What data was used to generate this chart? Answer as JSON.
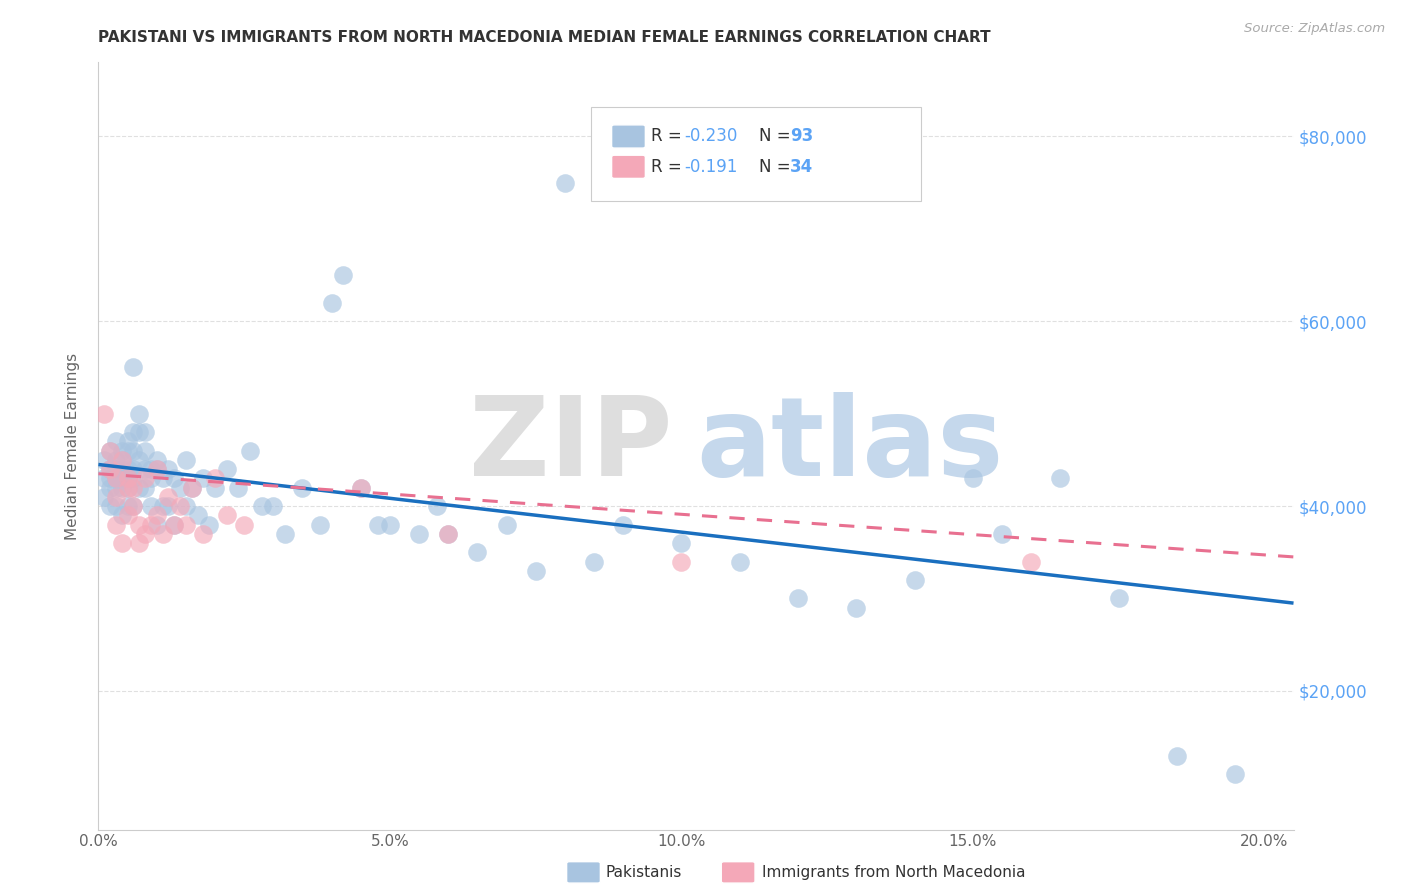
{
  "title": "PAKISTANI VS IMMIGRANTS FROM NORTH MACEDONIA MEDIAN FEMALE EARNINGS CORRELATION CHART",
  "source": "Source: ZipAtlas.com",
  "xlabel_ticks": [
    "0.0%",
    "5.0%",
    "10.0%",
    "15.0%",
    "20.0%"
  ],
  "xlabel_tick_vals": [
    0.0,
    0.05,
    0.1,
    0.15,
    0.2
  ],
  "ylabel": "Median Female Earnings",
  "ylabel_ticks": [
    "$80,000",
    "$60,000",
    "$40,000",
    "$20,000"
  ],
  "ylabel_tick_vals": [
    80000,
    60000,
    40000,
    20000
  ],
  "xlim": [
    0.0,
    0.205
  ],
  "ylim": [
    5000,
    88000
  ],
  "trend_pak_x0": 0.0,
  "trend_pak_y0": 44500,
  "trend_pak_x1": 0.205,
  "trend_pak_y1": 29500,
  "trend_mac_x0": 0.0,
  "trend_mac_y0": 43500,
  "trend_mac_x1": 0.205,
  "trend_mac_y1": 34500,
  "color_pakistani": "#a8c4e0",
  "color_macedonia": "#f4a8b8",
  "color_trend_pakistani": "#1a6fbf",
  "color_trend_macedonia": "#e87090",
  "color_axis_right": "#5ba3f5",
  "color_grid": "#e0e0e0",
  "pakistani_x": [
    0.001,
    0.001,
    0.001,
    0.002,
    0.002,
    0.002,
    0.002,
    0.002,
    0.003,
    0.003,
    0.003,
    0.003,
    0.003,
    0.003,
    0.004,
    0.004,
    0.004,
    0.004,
    0.004,
    0.004,
    0.005,
    0.005,
    0.005,
    0.005,
    0.005,
    0.005,
    0.006,
    0.006,
    0.006,
    0.006,
    0.006,
    0.006,
    0.007,
    0.007,
    0.007,
    0.007,
    0.008,
    0.008,
    0.008,
    0.008,
    0.009,
    0.009,
    0.009,
    0.01,
    0.01,
    0.01,
    0.011,
    0.011,
    0.012,
    0.012,
    0.013,
    0.013,
    0.014,
    0.015,
    0.015,
    0.016,
    0.017,
    0.018,
    0.019,
    0.02,
    0.022,
    0.024,
    0.026,
    0.028,
    0.03,
    0.032,
    0.035,
    0.038,
    0.04,
    0.042,
    0.045,
    0.048,
    0.05,
    0.055,
    0.058,
    0.06,
    0.065,
    0.07,
    0.075,
    0.08,
    0.085,
    0.09,
    0.1,
    0.11,
    0.12,
    0.13,
    0.14,
    0.15,
    0.155,
    0.165,
    0.175,
    0.185,
    0.195
  ],
  "pakistani_y": [
    45000,
    43000,
    41000,
    46000,
    44000,
    43000,
    42000,
    40000,
    47000,
    45000,
    44000,
    43000,
    42000,
    40000,
    46000,
    45000,
    44000,
    43000,
    42000,
    39000,
    47000,
    46000,
    44000,
    43000,
    42000,
    40000,
    55000,
    48000,
    46000,
    44000,
    43000,
    40000,
    50000,
    48000,
    45000,
    42000,
    48000,
    46000,
    44000,
    42000,
    44000,
    43000,
    40000,
    45000,
    44000,
    38000,
    43000,
    40000,
    44000,
    40000,
    43000,
    38000,
    42000,
    45000,
    40000,
    42000,
    39000,
    43000,
    38000,
    42000,
    44000,
    42000,
    46000,
    40000,
    40000,
    37000,
    42000,
    38000,
    62000,
    65000,
    42000,
    38000,
    38000,
    37000,
    40000,
    37000,
    35000,
    38000,
    33000,
    75000,
    34000,
    38000,
    36000,
    34000,
    30000,
    29000,
    32000,
    43000,
    37000,
    43000,
    30000,
    13000,
    11000
  ],
  "macedonia_x": [
    0.001,
    0.002,
    0.002,
    0.003,
    0.003,
    0.003,
    0.004,
    0.004,
    0.005,
    0.005,
    0.005,
    0.006,
    0.006,
    0.007,
    0.007,
    0.008,
    0.008,
    0.009,
    0.01,
    0.01,
    0.011,
    0.012,
    0.013,
    0.014,
    0.015,
    0.016,
    0.018,
    0.02,
    0.022,
    0.025,
    0.045,
    0.06,
    0.1,
    0.16
  ],
  "macedonia_y": [
    50000,
    46000,
    44000,
    43000,
    41000,
    38000,
    45000,
    36000,
    43000,
    42000,
    39000,
    42000,
    40000,
    38000,
    36000,
    43000,
    37000,
    38000,
    44000,
    39000,
    37000,
    41000,
    38000,
    40000,
    38000,
    42000,
    37000,
    43000,
    39000,
    38000,
    42000,
    37000,
    34000,
    34000
  ]
}
